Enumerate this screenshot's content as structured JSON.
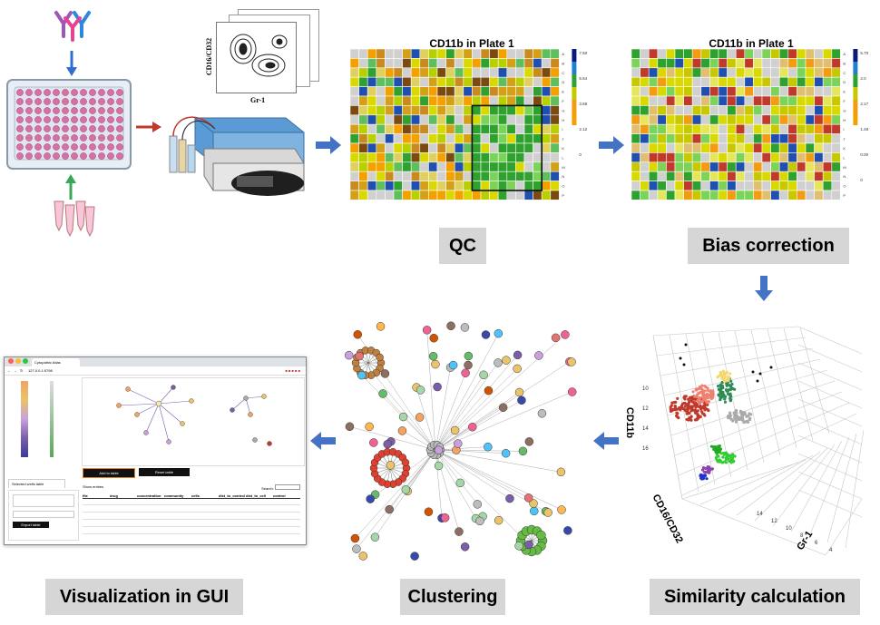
{
  "steps": {
    "qc": "QC",
    "bias": "Bias correction",
    "similarity": "Similarity calculation",
    "clustering": "Clustering",
    "gui": "Visualization in GUI"
  },
  "heatmap_left": {
    "title": "CD11b in Plate 1",
    "legend": [
      "7.50",
      "5.64",
      "3.68",
      "2.12",
      "0"
    ]
  },
  "heatmap_right": {
    "title": "CD11b in Plate 1",
    "legend": [
      "5.70",
      "2.0",
      "2.17",
      "1.48",
      "0.00",
      "0"
    ]
  },
  "flow_plot": {
    "ylabel": "CD16/CD32",
    "xlabel": "Gr-1"
  },
  "scatter3d": {
    "axis_y": "CD11b",
    "axis_z": "CD16/CD32",
    "axis_x": "Gr-1"
  },
  "gui": {
    "tab_title": "Cytopathic Atlas",
    "address": "127.0.0.1:5798",
    "btn_add": "Add to table",
    "btn_reset": "Reset table",
    "selected_tab": "Selected wells table",
    "show_label": "Show",
    "entries_label": "entries",
    "search_label": "Search:",
    "col_file": "file",
    "col_drug": "drug",
    "col_conc": "concentration",
    "col_comm": "community",
    "col_cells": "cells",
    "col_dmso": "dist_to_control",
    "col_cell2": "dist_to_cell",
    "col_ctrl": "control",
    "export_btn": "Export table"
  },
  "colors": {
    "arrow_blue": "#4472c4",
    "arrow_red": "#c0392b",
    "arrow_green": "#3aa65a",
    "label_bg": "#d6d6d6"
  }
}
